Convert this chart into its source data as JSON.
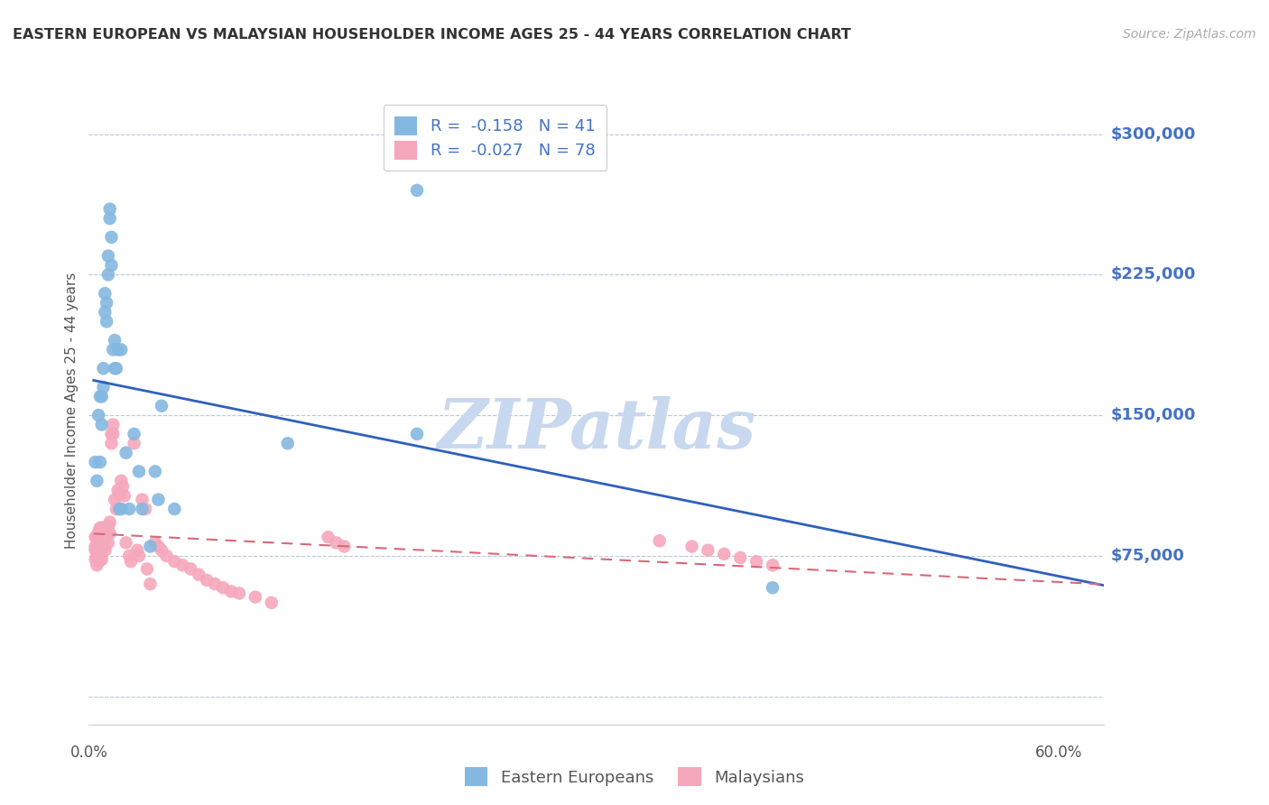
{
  "title": "EASTERN EUROPEAN VS MALAYSIAN HOUSEHOLDER INCOME AGES 25 - 44 YEARS CORRELATION CHART",
  "source": "Source: ZipAtlas.com",
  "ylabel": "Householder Income Ages 25 - 44 years",
  "yticks": [
    0,
    75000,
    150000,
    225000,
    300000
  ],
  "ytick_labels": [
    "",
    "$75,000",
    "$150,000",
    "$225,000",
    "$300,000"
  ],
  "ymax": 320000,
  "ymin": -15000,
  "xmin": -0.003,
  "xmax": 0.625,
  "blue_R": -0.158,
  "blue_N": 41,
  "pink_R": -0.027,
  "pink_N": 78,
  "blue_color": "#85b8e0",
  "pink_color": "#f5a8bb",
  "blue_line_color": "#3060bb",
  "pink_line_color": "#d86878",
  "bg_color": "#ffffff",
  "grid_color": "#b8c8d8",
  "title_color": "#333333",
  "source_color": "#aaaaaa",
  "ytick_color": "#4472c4",
  "legend_text_color": "#4472c4",
  "watermark_color": "#c8d8ee",
  "blue_points_x": [
    0.001,
    0.002,
    0.003,
    0.004,
    0.004,
    0.005,
    0.005,
    0.006,
    0.006,
    0.007,
    0.007,
    0.008,
    0.008,
    0.009,
    0.009,
    0.01,
    0.01,
    0.011,
    0.011,
    0.012,
    0.013,
    0.013,
    0.014,
    0.015,
    0.016,
    0.017,
    0.017,
    0.02,
    0.022,
    0.025,
    0.028,
    0.03,
    0.035,
    0.038,
    0.04,
    0.042,
    0.05,
    0.12,
    0.2,
    0.2,
    0.42
  ],
  "blue_points_y": [
    125000,
    115000,
    150000,
    160000,
    125000,
    160000,
    145000,
    175000,
    165000,
    215000,
    205000,
    210000,
    200000,
    235000,
    225000,
    260000,
    255000,
    245000,
    230000,
    185000,
    190000,
    175000,
    175000,
    185000,
    100000,
    185000,
    100000,
    130000,
    100000,
    140000,
    120000,
    100000,
    80000,
    120000,
    105000,
    155000,
    100000,
    135000,
    140000,
    270000,
    58000
  ],
  "pink_points_x": [
    0.001,
    0.001,
    0.001,
    0.001,
    0.002,
    0.002,
    0.002,
    0.002,
    0.003,
    0.003,
    0.003,
    0.003,
    0.004,
    0.004,
    0.004,
    0.004,
    0.005,
    0.005,
    0.005,
    0.005,
    0.006,
    0.006,
    0.006,
    0.007,
    0.007,
    0.007,
    0.008,
    0.008,
    0.009,
    0.009,
    0.01,
    0.01,
    0.011,
    0.011,
    0.012,
    0.012,
    0.013,
    0.014,
    0.015,
    0.016,
    0.017,
    0.018,
    0.019,
    0.02,
    0.022,
    0.023,
    0.025,
    0.027,
    0.028,
    0.03,
    0.032,
    0.033,
    0.035,
    0.038,
    0.04,
    0.042,
    0.045,
    0.05,
    0.055,
    0.06,
    0.065,
    0.07,
    0.075,
    0.08,
    0.085,
    0.09,
    0.1,
    0.11,
    0.145,
    0.15,
    0.155,
    0.35,
    0.37,
    0.38,
    0.39,
    0.4,
    0.41,
    0.42
  ],
  "pink_points_y": [
    85000,
    80000,
    78000,
    73000,
    85000,
    80000,
    75000,
    70000,
    88000,
    84000,
    79000,
    72000,
    90000,
    86000,
    81000,
    73000,
    88000,
    83000,
    78000,
    73000,
    90000,
    86000,
    81000,
    88000,
    83000,
    78000,
    90000,
    85000,
    91000,
    82000,
    93000,
    87000,
    140000,
    135000,
    145000,
    140000,
    105000,
    100000,
    110000,
    108000,
    115000,
    112000,
    107000,
    82000,
    75000,
    72000,
    135000,
    78000,
    75000,
    105000,
    100000,
    68000,
    60000,
    82000,
    80000,
    78000,
    75000,
    72000,
    70000,
    68000,
    65000,
    62000,
    60000,
    58000,
    56000,
    55000,
    53000,
    50000,
    85000,
    82000,
    80000,
    83000,
    80000,
    78000,
    76000,
    74000,
    72000,
    70000
  ]
}
